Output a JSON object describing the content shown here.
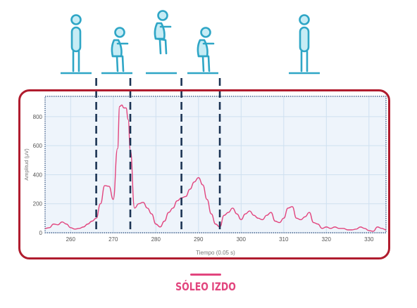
{
  "chart_data": {
    "type": "line",
    "title": "",
    "xlabel": "Tiempo (0.05 s)",
    "ylabel": "Amplitud (μV)",
    "xlim": [
      254,
      334
    ],
    "ylim": [
      0,
      940
    ],
    "xticks": [
      260,
      270,
      280,
      290,
      300,
      310,
      320,
      330
    ],
    "yticks": [
      0,
      200,
      400,
      600,
      800
    ],
    "grid": true,
    "series": [
      {
        "name": "SÓLEO IZDO",
        "color": "#e2457e",
        "x": [
          254,
          255,
          256,
          257,
          258,
          259,
          260,
          261,
          262,
          263,
          264,
          265,
          266,
          267,
          268,
          269,
          270,
          271,
          271.5,
          272,
          272.5,
          273,
          273.5,
          274,
          275,
          276,
          277,
          278,
          279,
          280,
          281,
          282,
          283,
          284,
          285,
          286,
          287,
          288,
          289,
          290,
          291,
          292,
          293,
          294,
          295,
          296,
          297,
          298,
          299,
          300,
          301,
          302,
          303,
          304,
          305,
          306,
          307,
          308,
          309,
          310,
          311,
          312,
          313,
          314,
          315,
          316,
          317,
          318,
          319,
          320,
          321,
          322,
          323,
          324,
          325,
          326,
          327,
          328,
          329,
          330,
          331,
          332,
          333,
          334
        ],
        "y": [
          30,
          35,
          60,
          55,
          75,
          60,
          35,
          25,
          30,
          40,
          60,
          80,
          100,
          200,
          325,
          320,
          230,
          580,
          870,
          880,
          860,
          860,
          780,
          570,
          170,
          200,
          210,
          170,
          130,
          60,
          40,
          80,
          140,
          170,
          220,
          240,
          250,
          300,
          350,
          380,
          330,
          230,
          130,
          60,
          40,
          120,
          140,
          170,
          130,
          90,
          130,
          150,
          120,
          100,
          90,
          120,
          140,
          80,
          70,
          100,
          170,
          180,
          100,
          90,
          110,
          140,
          70,
          60,
          30,
          40,
          30,
          40,
          30,
          30,
          20,
          20,
          25,
          40,
          30,
          15,
          10,
          40,
          30,
          20
        ]
      }
    ],
    "phase_markers_x": [
      266,
      274,
      286,
      295
    ]
  },
  "legend": {
    "label": "SÓLEO IZDO"
  },
  "figures": [
    {
      "pose": "standing"
    },
    {
      "pose": "squat"
    },
    {
      "pose": "jump"
    },
    {
      "pose": "squat"
    },
    {
      "pose": "standing"
    }
  ],
  "colors": {
    "line": "#e2457e",
    "frame": "#b01c2e",
    "figure_stroke": "#2fa6c6",
    "figure_fill": "#c6ecf5",
    "marker": "#1c3454",
    "plot_bg": "#eef4fb",
    "grid": "#cfe0f0"
  }
}
